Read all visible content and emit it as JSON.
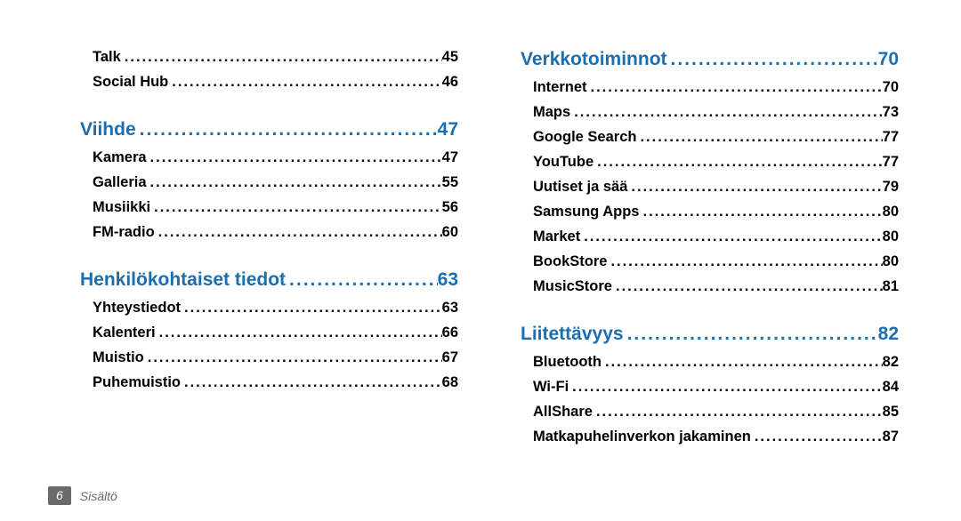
{
  "colors": {
    "section": "#1a6fb0",
    "entry": "#000000",
    "footer_badge_bg": "#6a6a6a",
    "footer_text": "#6a6a6a",
    "background": "#ffffff"
  },
  "typography": {
    "section_fontsize": 21,
    "entry_fontsize": 16.5,
    "footer_fontsize": 14,
    "font_family": "Segoe UI"
  },
  "left": {
    "preEntries": [
      {
        "label": "Talk",
        "page": "45"
      },
      {
        "label": "Social Hub",
        "page": "46"
      }
    ],
    "sections": [
      {
        "title": "Viihde",
        "page": "47",
        "entries": [
          {
            "label": "Kamera",
            "page": "47"
          },
          {
            "label": "Galleria",
            "page": "55"
          },
          {
            "label": "Musiikki",
            "page": "56"
          },
          {
            "label": "FM-radio",
            "page": "60"
          }
        ]
      },
      {
        "title": "Henkilökohtaiset tiedot",
        "page": "63",
        "entries": [
          {
            "label": "Yhteystiedot",
            "page": "63"
          },
          {
            "label": "Kalenteri",
            "page": "66"
          },
          {
            "label": "Muistio",
            "page": "67"
          },
          {
            "label": "Puhemuistio",
            "page": "68"
          }
        ]
      }
    ]
  },
  "right": {
    "sections": [
      {
        "title": "Verkkotoiminnot",
        "page": "70",
        "entries": [
          {
            "label": "Internet",
            "page": "70"
          },
          {
            "label": "Maps",
            "page": "73"
          },
          {
            "label": "Google Search",
            "page": "77"
          },
          {
            "label": "YouTube",
            "page": "77"
          },
          {
            "label": "Uutiset ja sää",
            "page": "79"
          },
          {
            "label": "Samsung Apps",
            "page": "80"
          },
          {
            "label": "Market",
            "page": "80"
          },
          {
            "label": "BookStore",
            "page": "80"
          },
          {
            "label": "MusicStore",
            "page": "81"
          }
        ]
      },
      {
        "title": "Liitettävyys",
        "page": "82",
        "entries": [
          {
            "label": "Bluetooth",
            "page": "82"
          },
          {
            "label": "Wi-Fi",
            "page": "84"
          },
          {
            "label": "AllShare",
            "page": "85"
          },
          {
            "label": "Matkapuhelinverkon jakaminen",
            "page": "87"
          }
        ]
      }
    ]
  },
  "footer": {
    "page_number": "6",
    "label": "Sisältö"
  }
}
